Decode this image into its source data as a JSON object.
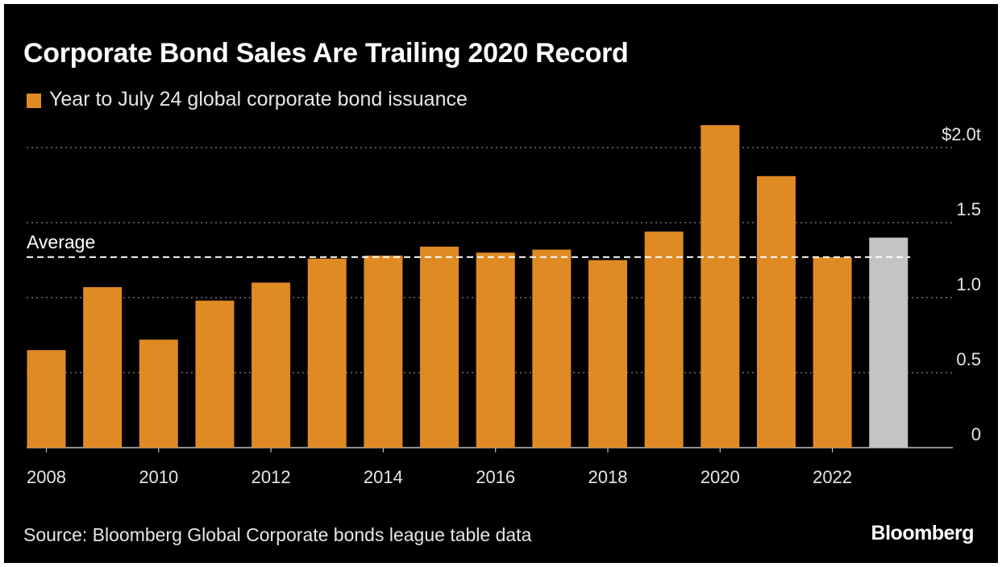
{
  "colors": {
    "background": "#000000",
    "bar": "#e08a24",
    "bar_highlight": "#c4c4c4",
    "grid": "#8a8a8a",
    "average_line": "#ffffff",
    "text": "#e6e6e6"
  },
  "chart_data": {
    "type": "bar",
    "title": "Corporate Bond Sales Are Trailing 2020 Record",
    "legend": [
      "Year to July 24 global corporate bond issuance"
    ],
    "categories": [
      "2008",
      "2009",
      "2010",
      "2011",
      "2012",
      "2013",
      "2014",
      "2015",
      "2016",
      "2017",
      "2018",
      "2019",
      "2020",
      "2021",
      "2022",
      "2023"
    ],
    "values": [
      0.65,
      1.07,
      0.72,
      0.98,
      1.1,
      1.26,
      1.28,
      1.34,
      1.3,
      1.32,
      1.25,
      1.44,
      2.15,
      1.81,
      1.27,
      1.4
    ],
    "highlight_index": 15,
    "x_tick_labels": [
      "2008",
      "2010",
      "2012",
      "2014",
      "2016",
      "2018",
      "2020",
      "2022"
    ],
    "y_ticks": [
      {
        "value": 0,
        "label": "0"
      },
      {
        "value": 0.5,
        "label": "0.5"
      },
      {
        "value": 1.0,
        "label": "1.0"
      },
      {
        "value": 1.5,
        "label": "1.5"
      },
      {
        "value": 2.0,
        "label": "$2.0t"
      }
    ],
    "ylim": [
      0,
      2.0
    ],
    "average": {
      "value": 1.27,
      "label": "Average"
    },
    "y_axis_side": "right",
    "grid": "dotted horizontal",
    "xlabel": "",
    "ylabel": ""
  },
  "footer": {
    "source": "Source: Bloomberg Global Corporate bonds league table data",
    "brand": "Bloomberg"
  }
}
